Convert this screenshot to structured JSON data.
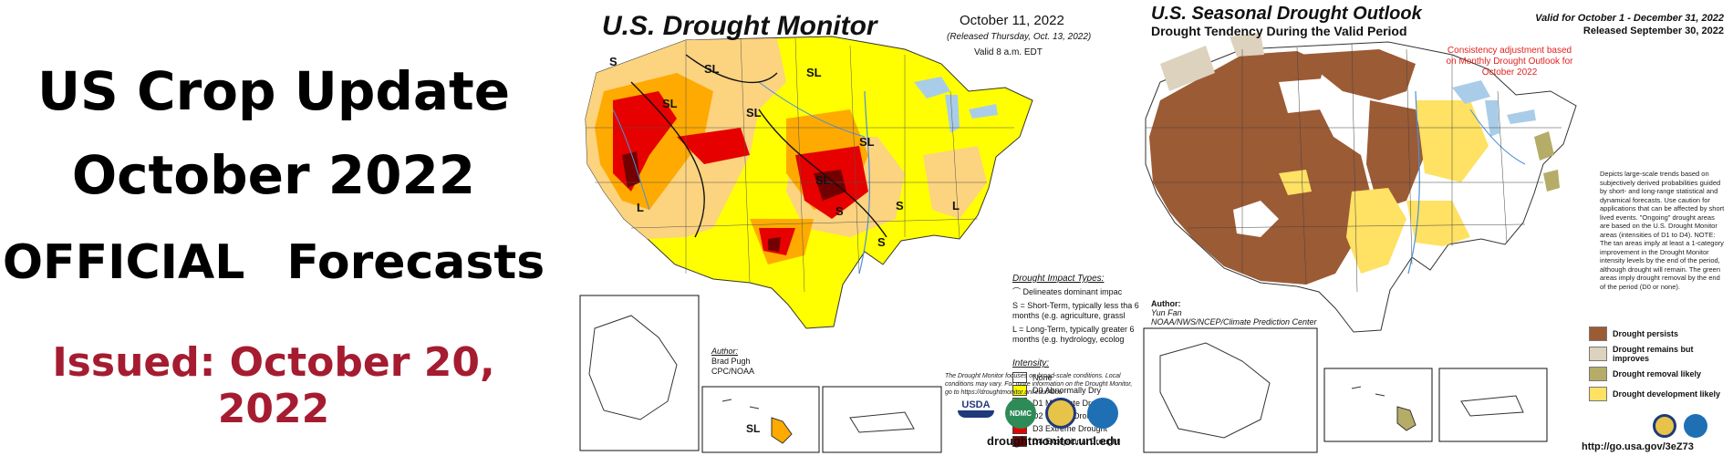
{
  "title": {
    "line1": "US Crop Update",
    "line2": "October 2022",
    "line3": "OFFICIAL Forecasts",
    "issued": "Issued: October 20, 2022"
  },
  "drought_monitor": {
    "title": "U.S. Drought Monitor",
    "date": "October 11, 2022",
    "released": "(Released Thursday, Oct. 13, 2022)",
    "valid": "Valid 8 a.m. EDT",
    "impact_heading": "Drought Impact Types:",
    "impact_line": "Delineates dominant impac",
    "impact_s": "S = Short-Term, typically less tha 6 months (e.g. agriculture, grassl",
    "impact_l": "L = Long-Term, typically greater 6 months (e.g. hydrology, ecolog",
    "intensity_heading": "Intensity:",
    "intensity": [
      {
        "label": "None",
        "color": "#ffffff"
      },
      {
        "label": "D0 Abnormally Dry",
        "color": "#ffff00"
      },
      {
        "label": "D1 Moderate Drought",
        "color": "#fcd37f"
      },
      {
        "label": "D2 Severe Drought",
        "color": "#ffaa00"
      },
      {
        "label": "D3 Extreme Drought",
        "color": "#e60000"
      },
      {
        "label": "D4 Exceptional Drought",
        "color": "#730000"
      }
    ],
    "author_label": "Author:",
    "author_name": "Brad Pugh",
    "author_org": "CPC/NOAA",
    "note": "The Drought Monitor focuses on broad-scale conditions. Local conditions may vary. For more information on the Drought Monitor, go to https://droughtmonitor.unl.edu/Abou",
    "usda_logo": "USDA",
    "ndmc_logo": "NDMC",
    "url": "droughtmonitor.unl.edu"
  },
  "outlook": {
    "title": "U.S. Seasonal Drought Outlook",
    "subtitle": "Drought Tendency During the Valid Period",
    "valid": "Valid for October 1 - December 31, 2022",
    "released": "Released September 30, 2022",
    "consistency": "Consistency adjustment based on Monthly Drought Outlook for October 2022",
    "description": "Depicts large-scale trends based on subjectively derived probabilities guided by short- and long-range statistical and dynamical forecasts. Use caution for applications that can be affected by short lived events. \"Ongoing\" drought areas are based on the U.S. Drought Monitor areas (intensities of D1 to D4). NOTE: The tan areas imply at least a 1-category improvement in the Drought Monitor intensity levels by the end of the period, although drought will remain. The green areas imply drought removal by the end of the period (D0 or none).",
    "legend": [
      {
        "label": "Drought persists",
        "color": "#9b5b35"
      },
      {
        "label": "Drought remains but improves",
        "color": "#ddd2bd"
      },
      {
        "label": "Drought removal likely",
        "color": "#b5ac68"
      },
      {
        "label": "Drought development likely",
        "color": "#ffe163"
      }
    ],
    "author_label": "Author:",
    "author_name": "Yun Fan",
    "author_org": "NOAA/NWS/NCEP/Climate Prediction Center",
    "url": "http://go.usa.gov/3eZ73"
  }
}
